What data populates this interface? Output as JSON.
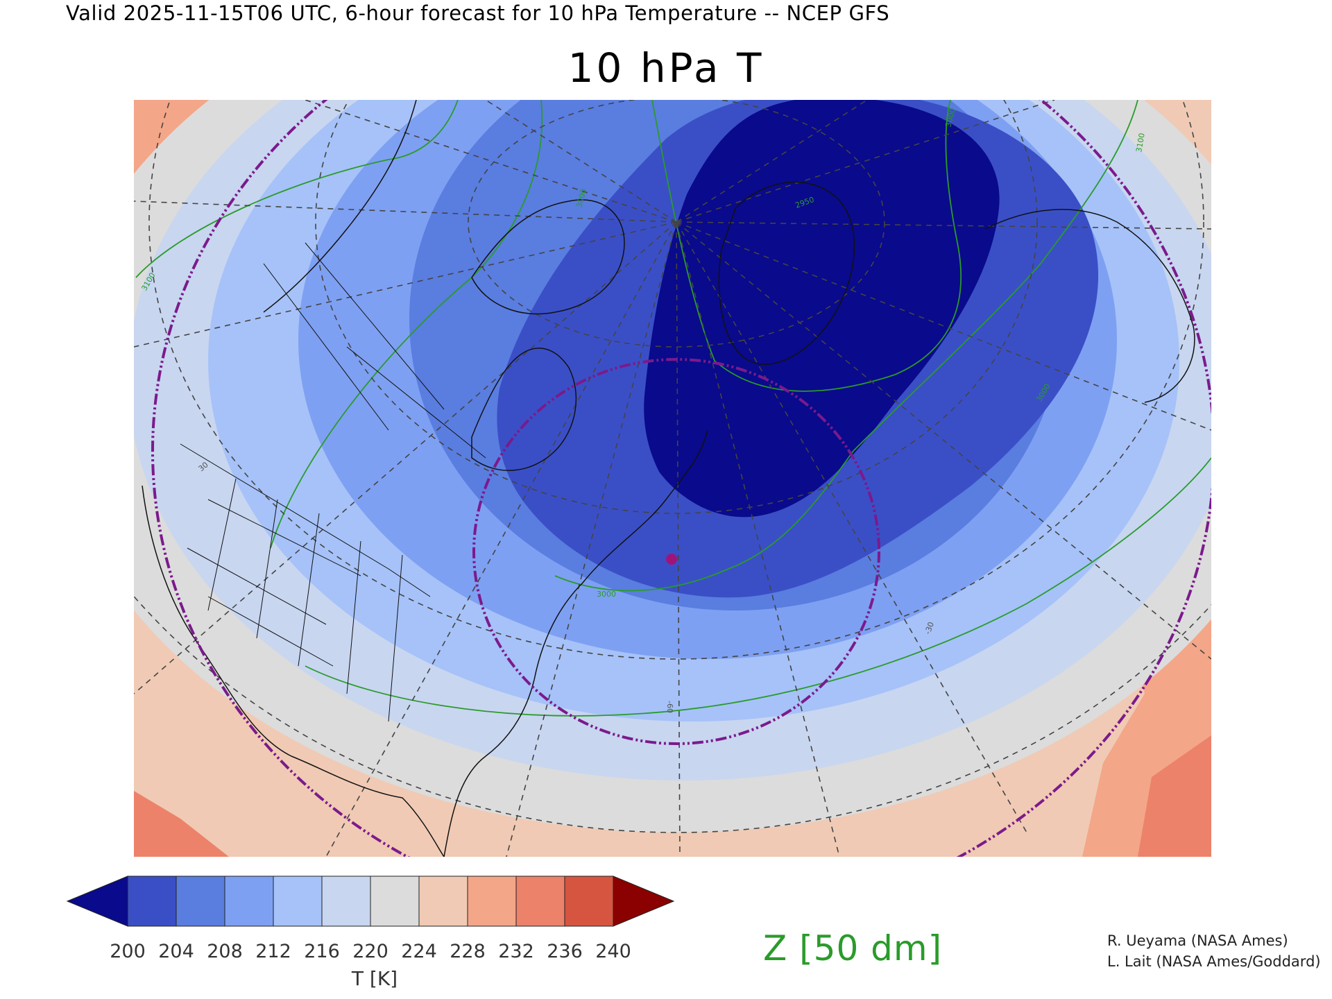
{
  "header": {
    "valid_line": "Valid 2025-11-15T06 UTC, 6-hour forecast for 10 hPa Temperature -- NCEP GFS",
    "title": "10 hPa T"
  },
  "colorbar": {
    "ticks": [
      "200",
      "204",
      "208",
      "212",
      "216",
      "220",
      "224",
      "228",
      "232",
      "236",
      "240"
    ],
    "label": "T [K]",
    "colors": [
      "#0a0a8c",
      "#3a4fc6",
      "#5a7de0",
      "#7ea0f2",
      "#a6c2f8",
      "#c8d6f0",
      "#dcdcdc",
      "#f0cab4",
      "#f4a688",
      "#ec826a",
      "#d65540",
      "#8b0000"
    ]
  },
  "contour_legend": {
    "label": "Z [50 dm]",
    "color": "#2a9b2a"
  },
  "contour_labels": [
    "3000",
    "3000",
    "3100",
    "3000",
    "2950",
    "3000",
    "3100"
  ],
  "gridline_labels": [
    "-60",
    "-30",
    "30"
  ],
  "credits": [
    "R. Ueyama (NASA Ames)",
    "L. Lait (NASA Ames/Goddard)"
  ],
  "accent_colors": {
    "vortex_edge": "#7b1a8c",
    "marker": "#a0147a",
    "gridline": "#444444"
  }
}
